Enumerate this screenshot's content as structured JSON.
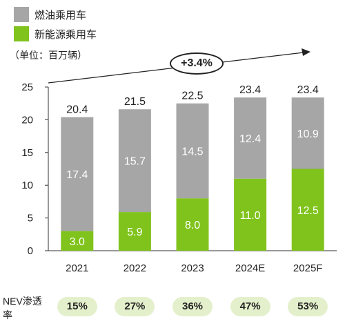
{
  "legend": {
    "fuel": {
      "label": "燃油乘用车",
      "color": "#a6a6a6"
    },
    "nev": {
      "label": "新能源乘用车",
      "color": "#80c31c"
    }
  },
  "unit_label": "（单位：百万辆）",
  "growth_label": "+3.4%",
  "nev_penetration": {
    "label": "NEV渗透率",
    "values": [
      "15%",
      "27%",
      "36%",
      "47%",
      "53%"
    ]
  },
  "chart_data": {
    "type": "bar",
    "stacked": true,
    "categories": [
      "2021",
      "2022",
      "2023",
      "2024E",
      "2025F"
    ],
    "series": [
      {
        "name": "新能源乘用车",
        "values": [
          3.0,
          5.9,
          8.0,
          11.0,
          12.5
        ],
        "labels": [
          "3.0",
          "5.9",
          "8.0",
          "11.0",
          "12.5"
        ],
        "color": "#80c31c"
      },
      {
        "name": "燃油乘用车",
        "values": [
          17.4,
          15.7,
          14.5,
          12.4,
          10.9
        ],
        "labels": [
          "17.4",
          "15.7",
          "14.5",
          "12.4",
          "10.9"
        ],
        "color": "#a6a6a6"
      }
    ],
    "totals": [
      "20.4",
      "21.5",
      "22.5",
      "23.4",
      "23.4"
    ],
    "ylim": [
      0,
      25
    ],
    "yticks": [
      "0",
      "5",
      "10",
      "15",
      "20",
      "25"
    ],
    "grid": false
  }
}
